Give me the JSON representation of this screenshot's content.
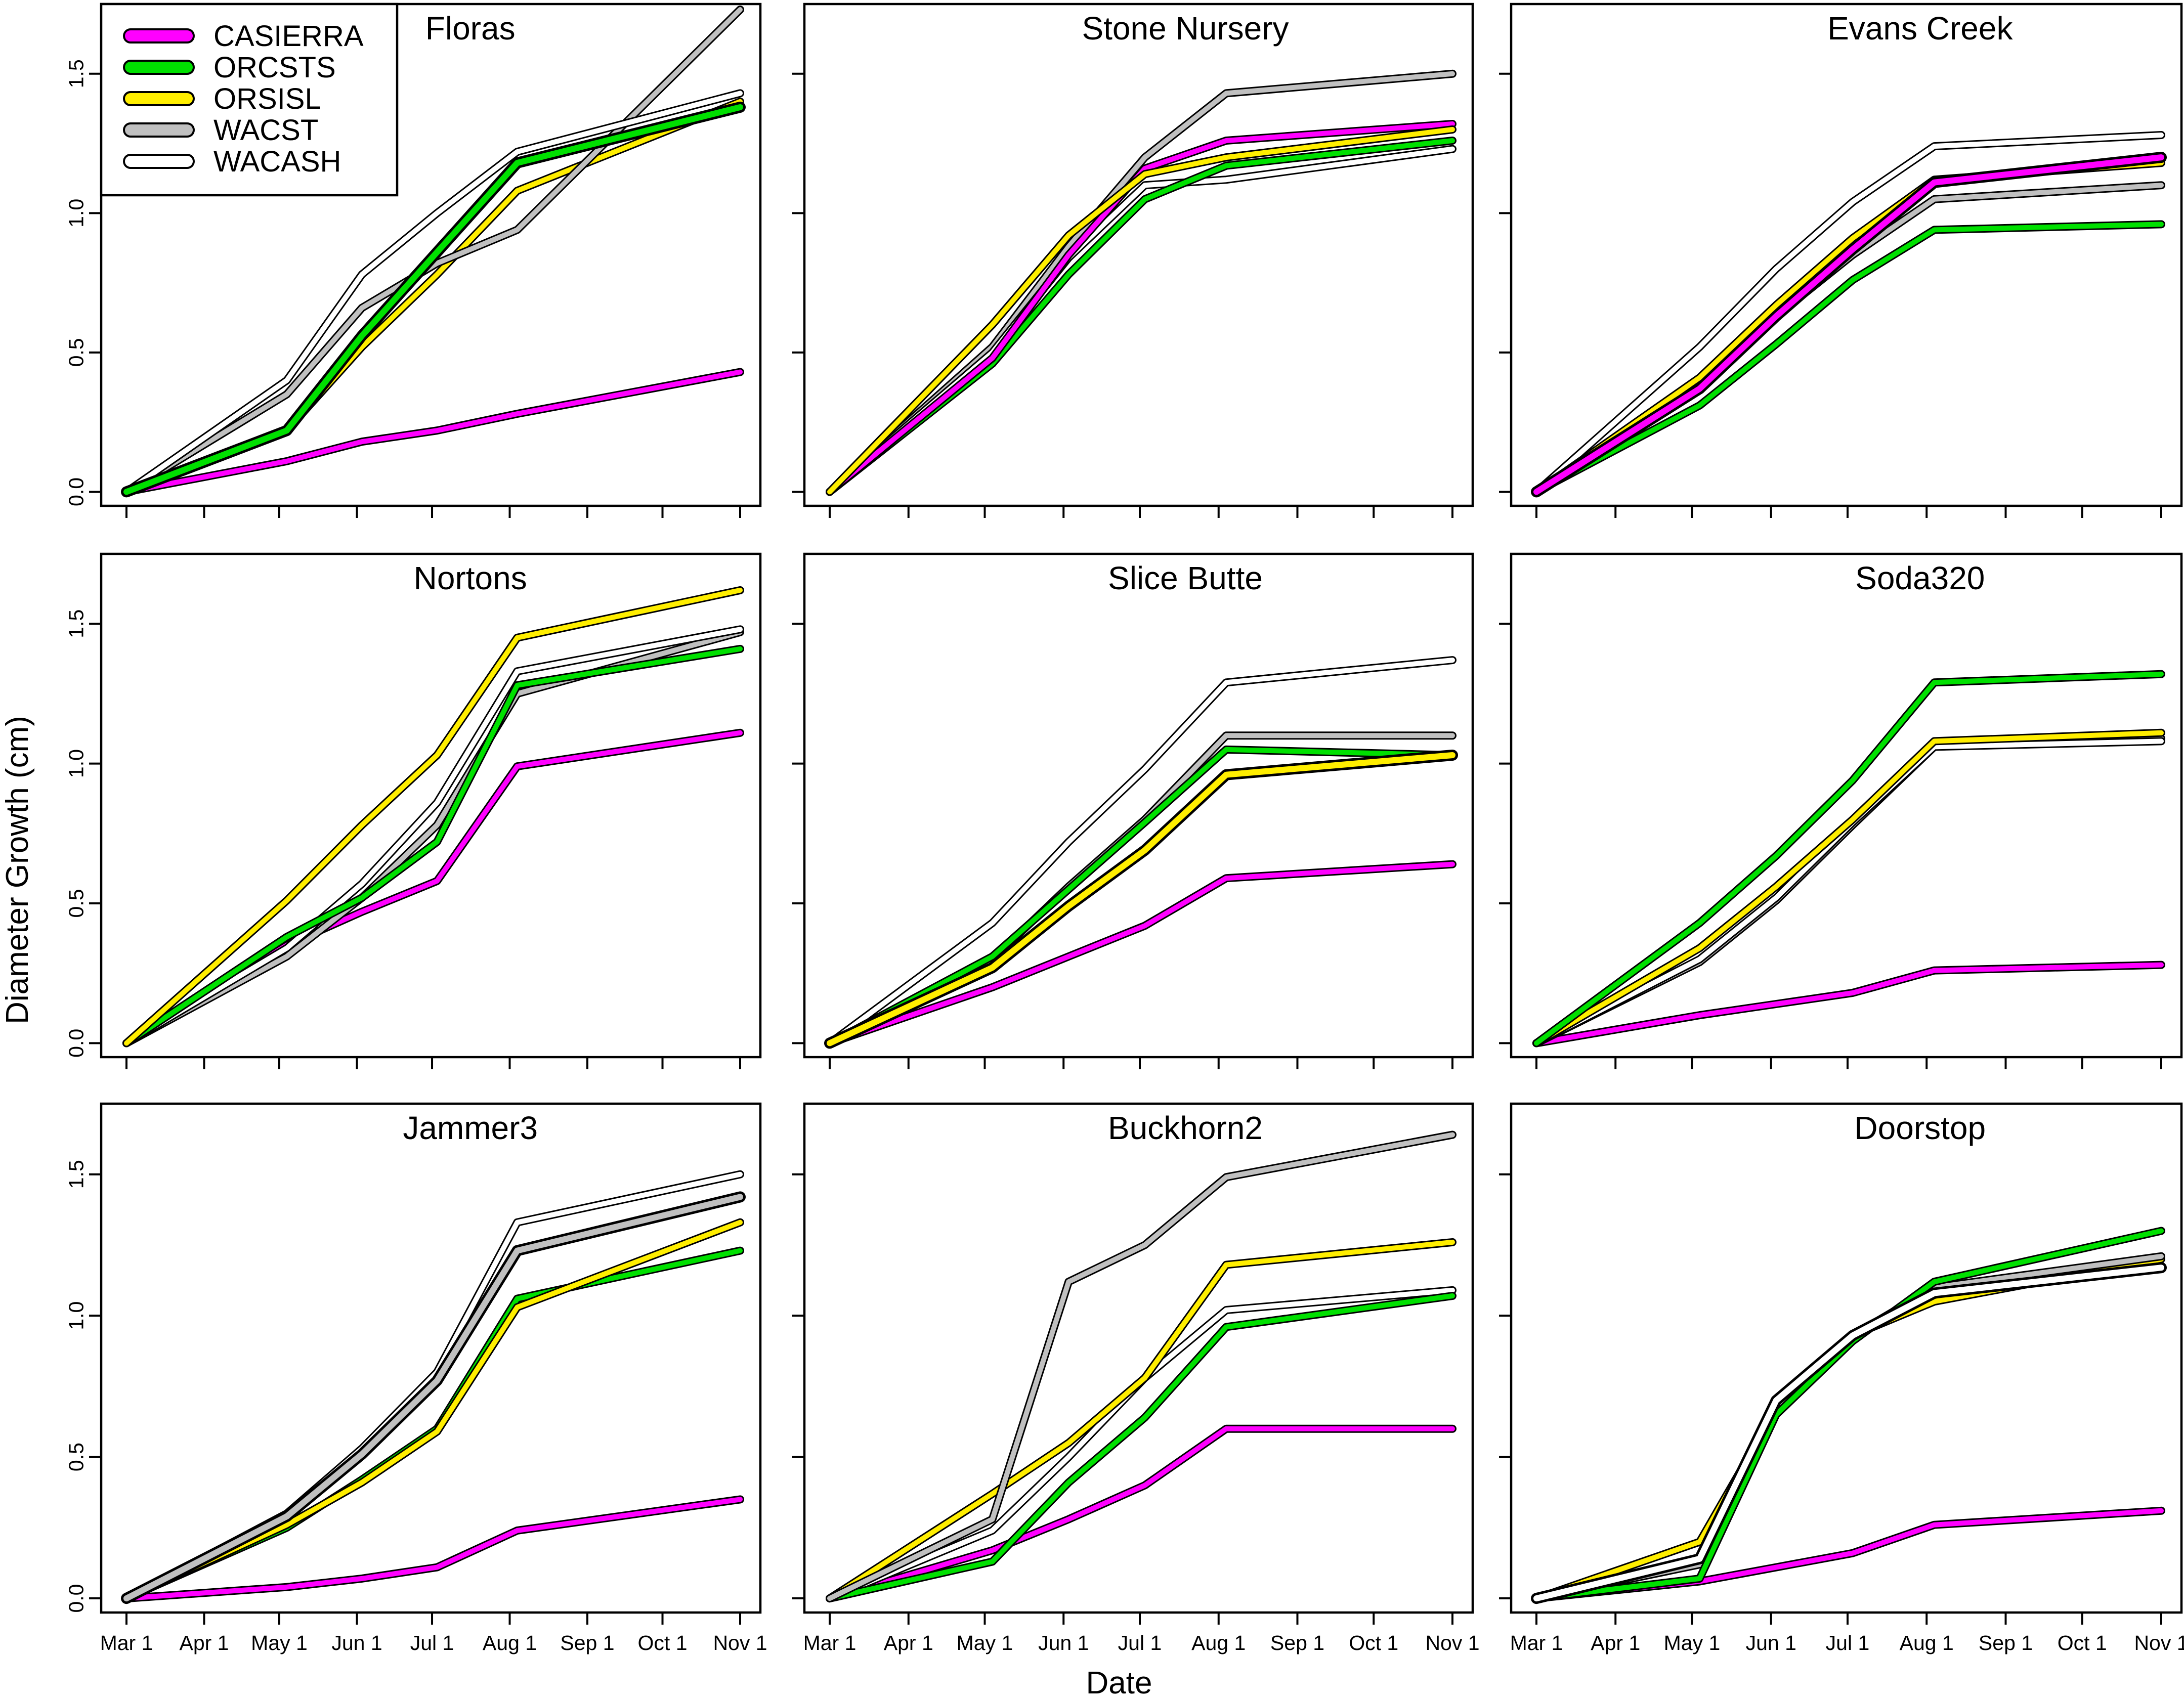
{
  "chart_data": {
    "type": "line",
    "layout": "3x3 small multiples",
    "xlabel": "Date",
    "ylabel": "Diameter Growth (cm)",
    "x": [
      "Mar 1",
      "Apr 1",
      "May 1",
      "Jun 1",
      "Jul 1",
      "Aug 1",
      "Sep 1",
      "Oct 1",
      "Nov 1"
    ],
    "x_day": [
      0,
      31,
      61,
      92,
      122,
      153,
      184,
      214,
      245
    ],
    "ylim": [
      -0.05,
      1.75
    ],
    "yticks": [
      "0.0",
      "0.5",
      "1.0",
      "1.5"
    ],
    "ytick_values": [
      0,
      0.5,
      1.0,
      1.5
    ],
    "measurement_days": [
      0,
      64,
      94,
      124,
      156,
      245
    ],
    "legend": {
      "location": "top-left (in first panel)",
      "entries": [
        {
          "name": "CASIERRA",
          "color": "#ff00ff"
        },
        {
          "name": "ORCSTS",
          "color": "#00e000"
        },
        {
          "name": "ORSISL",
          "color": "#ffee00"
        },
        {
          "name": "WACST",
          "color": "#c0c0c0"
        },
        {
          "name": "WACASH",
          "color": "#ffffff"
        }
      ]
    },
    "panels": [
      {
        "title": "Floras",
        "highlight": "ORCSTS",
        "series": [
          {
            "name": "CASIERRA",
            "values": [
              0,
              0.11,
              0.18,
              0.22,
              0.28,
              0.43
            ]
          },
          {
            "name": "ORSISL",
            "values": [
              0,
              0.22,
              0.52,
              0.78,
              1.08,
              1.4
            ]
          },
          {
            "name": "WACST",
            "values": [
              0,
              0.35,
              0.66,
              0.82,
              0.94,
              1.73
            ]
          },
          {
            "name": "WACASH",
            "values": [
              0,
              0.4,
              0.78,
              1.0,
              1.22,
              1.43
            ]
          },
          {
            "name": "ORCSTS",
            "values": [
              0,
              0.22,
              0.56,
              0.86,
              1.18,
              1.38
            ]
          }
        ]
      },
      {
        "title": "Stone Nursery",
        "highlight": null,
        "series": [
          {
            "name": "WACST",
            "values": [
              0,
              0.52,
              0.88,
              1.2,
              1.43,
              1.5
            ]
          },
          {
            "name": "WACASH",
            "values": [
              0,
              0.5,
              0.84,
              1.1,
              1.12,
              1.23
            ]
          },
          {
            "name": "ORCSTS",
            "values": [
              0,
              0.46,
              0.78,
              1.05,
              1.17,
              1.26
            ]
          },
          {
            "name": "CASIERRA",
            "values": [
              0,
              0.48,
              0.85,
              1.16,
              1.26,
              1.32
            ]
          },
          {
            "name": "ORSISL",
            "values": [
              0,
              0.6,
              0.92,
              1.14,
              1.2,
              1.3
            ]
          }
        ]
      },
      {
        "title": "Evans Creek",
        "highlight": "CASIERRA",
        "series": [
          {
            "name": "WACASH",
            "values": [
              0,
              0.52,
              0.8,
              1.04,
              1.24,
              1.28
            ]
          },
          {
            "name": "WACST",
            "values": [
              0,
              0.4,
              0.63,
              0.85,
              1.05,
              1.1
            ]
          },
          {
            "name": "ORCSTS",
            "values": [
              0,
              0.31,
              0.53,
              0.76,
              0.94,
              0.96
            ]
          },
          {
            "name": "ORSISL",
            "values": [
              0,
              0.41,
              0.67,
              0.91,
              1.12,
              1.18
            ]
          },
          {
            "name": "CASIERRA",
            "values": [
              0,
              0.37,
              0.63,
              0.87,
              1.11,
              1.2
            ]
          }
        ]
      },
      {
        "title": "Nortons",
        "highlight": null,
        "series": [
          {
            "name": "CASIERRA",
            "values": [
              0,
              0.35,
              0.47,
              0.58,
              0.99,
              1.11
            ]
          },
          {
            "name": "WACST",
            "values": [
              0,
              0.31,
              0.52,
              0.78,
              1.25,
              1.47
            ]
          },
          {
            "name": "WACASH",
            "values": [
              0,
              0.34,
              0.57,
              0.86,
              1.33,
              1.48
            ]
          },
          {
            "name": "ORCSTS",
            "values": [
              0,
              0.38,
              0.52,
              0.72,
              1.28,
              1.41
            ]
          },
          {
            "name": "ORSISL",
            "values": [
              0,
              0.51,
              0.78,
              1.03,
              1.45,
              1.62
            ]
          }
        ]
      },
      {
        "title": "Slice Butte",
        "highlight": "ORSISL",
        "series": [
          {
            "name": "CASIERRA",
            "values": [
              0,
              0.2,
              0.31,
              0.42,
              0.59,
              0.64
            ]
          },
          {
            "name": "WACASH",
            "values": [
              0,
              0.43,
              0.72,
              0.98,
              1.29,
              1.37
            ]
          },
          {
            "name": "WACST",
            "values": [
              0,
              0.3,
              0.56,
              0.8,
              1.1,
              1.1
            ]
          },
          {
            "name": "ORCSTS",
            "values": [
              0,
              0.31,
              0.55,
              0.79,
              1.05,
              1.03
            ]
          },
          {
            "name": "ORSISL",
            "values": [
              0,
              0.27,
              0.49,
              0.69,
              0.96,
              1.03
            ]
          }
        ]
      },
      {
        "title": "Soda320",
        "highlight": null,
        "series": [
          {
            "name": "CASIERRA",
            "values": [
              0,
              0.1,
              0.14,
              0.18,
              0.26,
              0.28
            ]
          },
          {
            "name": "WACST",
            "values": [
              0,
              0.29,
              0.51,
              0.78,
              1.06,
              1.09
            ]
          },
          {
            "name": "WACASH",
            "values": [
              0,
              0.3,
              0.52,
              0.79,
              1.06,
              1.08
            ]
          },
          {
            "name": "ORSISL",
            "values": [
              0,
              0.34,
              0.56,
              0.8,
              1.08,
              1.11
            ]
          },
          {
            "name": "ORCSTS",
            "values": [
              0,
              0.43,
              0.67,
              0.94,
              1.29,
              1.32
            ]
          }
        ]
      },
      {
        "title": "Jammer3",
        "highlight": "WACST",
        "series": [
          {
            "name": "CASIERRA",
            "values": [
              0,
              0.04,
              0.07,
              0.11,
              0.24,
              0.35
            ]
          },
          {
            "name": "ORCSTS",
            "values": [
              0,
              0.25,
              0.42,
              0.6,
              1.06,
              1.23
            ]
          },
          {
            "name": "ORSISL",
            "values": [
              0,
              0.26,
              0.41,
              0.59,
              1.03,
              1.33
            ]
          },
          {
            "name": "WACASH",
            "values": [
              0,
              0.3,
              0.53,
              0.8,
              1.33,
              1.5
            ]
          },
          {
            "name": "WACST",
            "values": [
              0,
              0.29,
              0.51,
              0.77,
              1.23,
              1.42
            ]
          }
        ]
      },
      {
        "title": "Buckhorn2",
        "highlight": null,
        "series": [
          {
            "name": "CASIERRA",
            "values": [
              0,
              0.17,
              0.28,
              0.4,
              0.6,
              0.6
            ]
          },
          {
            "name": "WACASH",
            "values": [
              0,
              0.24,
              0.5,
              0.78,
              1.02,
              1.09
            ]
          },
          {
            "name": "ORCSTS",
            "values": [
              0,
              0.13,
              0.41,
              0.64,
              0.96,
              1.07
            ]
          },
          {
            "name": "ORSISL",
            "values": [
              0,
              0.37,
              0.55,
              0.78,
              1.18,
              1.26
            ]
          },
          {
            "name": "WACST",
            "values": [
              0,
              0.28,
              1.12,
              1.25,
              1.49,
              1.64
            ]
          }
        ]
      },
      {
        "title": "Doorstop",
        "highlight": "WACASH",
        "series": [
          {
            "name": "CASIERRA",
            "values": [
              0,
              0.06,
              0.11,
              0.16,
              0.26,
              0.31
            ]
          },
          {
            "name": "ORSISL",
            "values": [
              0,
              0.2,
              0.67,
              0.93,
              1.05,
              1.2
            ]
          },
          {
            "name": "WACST",
            "values": [
              0,
              0.12,
              0.68,
              0.93,
              1.1,
              1.21
            ]
          },
          {
            "name": "ORCSTS",
            "values": [
              0,
              0.07,
              0.65,
              0.91,
              1.12,
              1.3
            ]
          },
          {
            "name": "WACASH",
            "values": [
              0,
              0.14,
              0.7,
              0.93,
              1.08,
              1.17
            ]
          }
        ]
      }
    ]
  }
}
